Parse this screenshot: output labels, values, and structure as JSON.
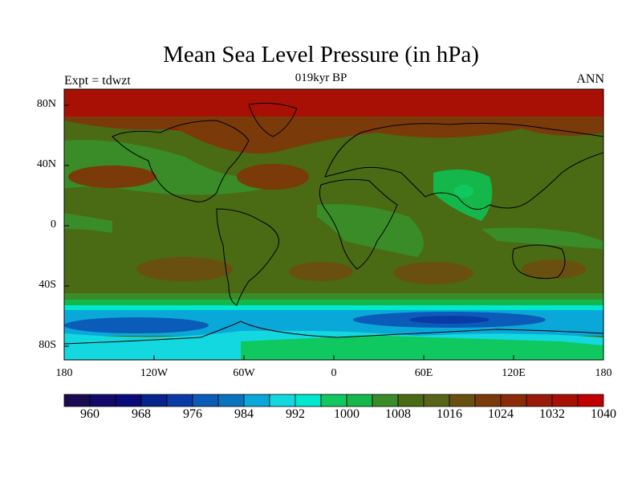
{
  "title": "Mean Sea Level Pressure (in hPa)",
  "subtitle": "019kyr BP",
  "left_label": "Expt = tdwzt",
  "right_label": "ANN",
  "lat_ticks": [
    "80N",
    "40N",
    "0",
    "40S",
    "80S"
  ],
  "lon_ticks": [
    "180",
    "120W",
    "60W",
    "0",
    "60E",
    "120E",
    "180"
  ],
  "colorbar": {
    "labels": [
      "960",
      "968",
      "976",
      "984",
      "992",
      "1000",
      "1008",
      "1016",
      "1024",
      "1032",
      "1040"
    ],
    "colors": [
      "#1a0a4f",
      "#14096a",
      "#0a0a7a",
      "#06238c",
      "#0a3aa8",
      "#0a5cb8",
      "#0a73c0",
      "#0aa8d8",
      "#14d8e0",
      "#00e8d0",
      "#10c860",
      "#14b84a",
      "#3a8c28",
      "#4a6a14",
      "#5a6418",
      "#6a5010",
      "#7a3a0a",
      "#8c2a08",
      "#9a1a0a",
      "#a81006",
      "#c00000"
    ]
  },
  "chart_data": {
    "type": "contour-map",
    "title": "Mean Sea Level Pressure (in hPa)",
    "subtitle": "019kyr BP",
    "variable": "Mean Sea Level Pressure",
    "units": "hPa",
    "experiment": "tdwzt",
    "period": "ANN",
    "lon_range": [
      -180,
      180
    ],
    "lat_range": [
      -90,
      90
    ],
    "levels": [
      960,
      964,
      968,
      972,
      976,
      980,
      984,
      988,
      992,
      996,
      1000,
      1004,
      1008,
      1012,
      1016,
      1020,
      1024,
      1028,
      1032,
      1036,
      1040
    ]
  }
}
